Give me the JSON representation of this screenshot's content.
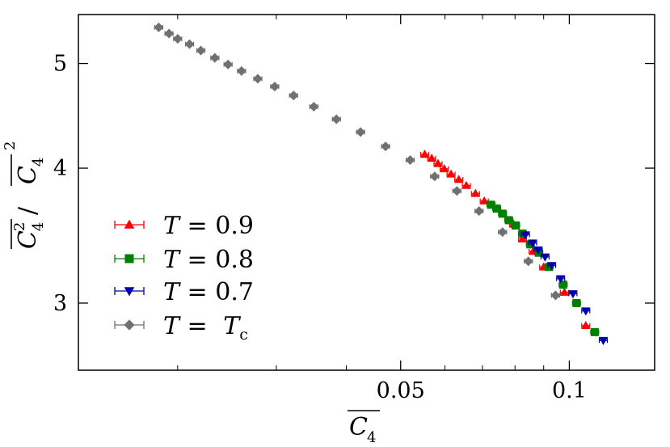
{
  "chart_data": {
    "type": "scatter",
    "xlabel": "C4",
    "ylabel": "C4²/C4²",
    "x_scale": "log",
    "y_scale": "log",
    "xlim": [
      0.0133,
      0.142
    ],
    "ylim": [
      2.6,
      5.55
    ],
    "x_ticks": [
      {
        "value": 0.05,
        "label": "0.05"
      },
      {
        "value": 0.1,
        "label": "0.1"
      }
    ],
    "y_ticks": [
      {
        "value": 3,
        "label": "3"
      },
      {
        "value": 4,
        "label": "4"
      },
      {
        "value": 5,
        "label": "5"
      }
    ],
    "legend_position": "bottom-left",
    "series": [
      {
        "name": "T = 0.9",
        "label_lhs": "T",
        "label_rhs": "0.9",
        "color": "#ff0000",
        "marker": "triangle-up",
        "points": [
          [
            0.0552,
            4.12
          ],
          [
            0.0568,
            4.085
          ],
          [
            0.0583,
            4.04
          ],
          [
            0.0598,
            3.995
          ],
          [
            0.0615,
            3.95
          ],
          [
            0.0635,
            3.905
          ],
          [
            0.0655,
            3.855
          ],
          [
            0.068,
            3.79
          ],
          [
            0.0705,
            3.73
          ],
          [
            0.0795,
            3.55
          ],
          [
            0.0825,
            3.44
          ],
          [
            0.0862,
            3.35
          ],
          [
            0.09,
            3.24
          ],
          [
            0.098,
            3.07
          ],
          [
            0.107,
            2.86
          ]
        ]
      },
      {
        "name": "T = 0.8",
        "label_lhs": "T",
        "label_rhs": "0.8",
        "color": "#008000",
        "marker": "square",
        "points": [
          [
            0.0725,
            3.7
          ],
          [
            0.0742,
            3.67
          ],
          [
            0.076,
            3.63
          ],
          [
            0.078,
            3.58
          ],
          [
            0.0802,
            3.54
          ],
          [
            0.0825,
            3.48
          ],
          [
            0.0852,
            3.4
          ],
          [
            0.0882,
            3.34
          ],
          [
            0.092,
            3.24
          ],
          [
            0.0975,
            3.12
          ],
          [
            0.103,
            3.0
          ],
          [
            0.111,
            2.82
          ]
        ]
      },
      {
        "name": "T = 0.7",
        "label_lhs": "T",
        "label_rhs": "0.7",
        "color": "#0000aa",
        "marker": "triangle-down",
        "points": [
          [
            0.0835,
            3.47
          ],
          [
            0.086,
            3.41
          ],
          [
            0.088,
            3.36
          ],
          [
            0.0905,
            3.31
          ],
          [
            0.093,
            3.25
          ],
          [
            0.0965,
            3.16
          ],
          [
            0.1015,
            3.06
          ],
          [
            0.107,
            2.95
          ],
          [
            0.115,
            2.77
          ]
        ]
      },
      {
        "name": "T = Tc",
        "label_lhs": "T",
        "label_rhs": "T",
        "label_rhs_sub": "c",
        "color": "#707070",
        "marker": "diamond",
        "points": [
          [
            0.0185,
            5.4
          ],
          [
            0.0193,
            5.33
          ],
          [
            0.02,
            5.27
          ],
          [
            0.021,
            5.21
          ],
          [
            0.022,
            5.14
          ],
          [
            0.0233,
            5.06
          ],
          [
            0.0246,
            4.99
          ],
          [
            0.026,
            4.92
          ],
          [
            0.0278,
            4.84
          ],
          [
            0.0298,
            4.76
          ],
          [
            0.0322,
            4.67
          ],
          [
            0.035,
            4.56
          ],
          [
            0.0384,
            4.44
          ],
          [
            0.0424,
            4.32
          ],
          [
            0.047,
            4.19
          ],
          [
            0.052,
            4.07
          ],
          [
            0.0575,
            3.93
          ],
          [
            0.063,
            3.81
          ],
          [
            0.069,
            3.65
          ],
          [
            0.076,
            3.49
          ],
          [
            0.0845,
            3.28
          ],
          [
            0.0945,
            3.05
          ]
        ]
      }
    ]
  }
}
